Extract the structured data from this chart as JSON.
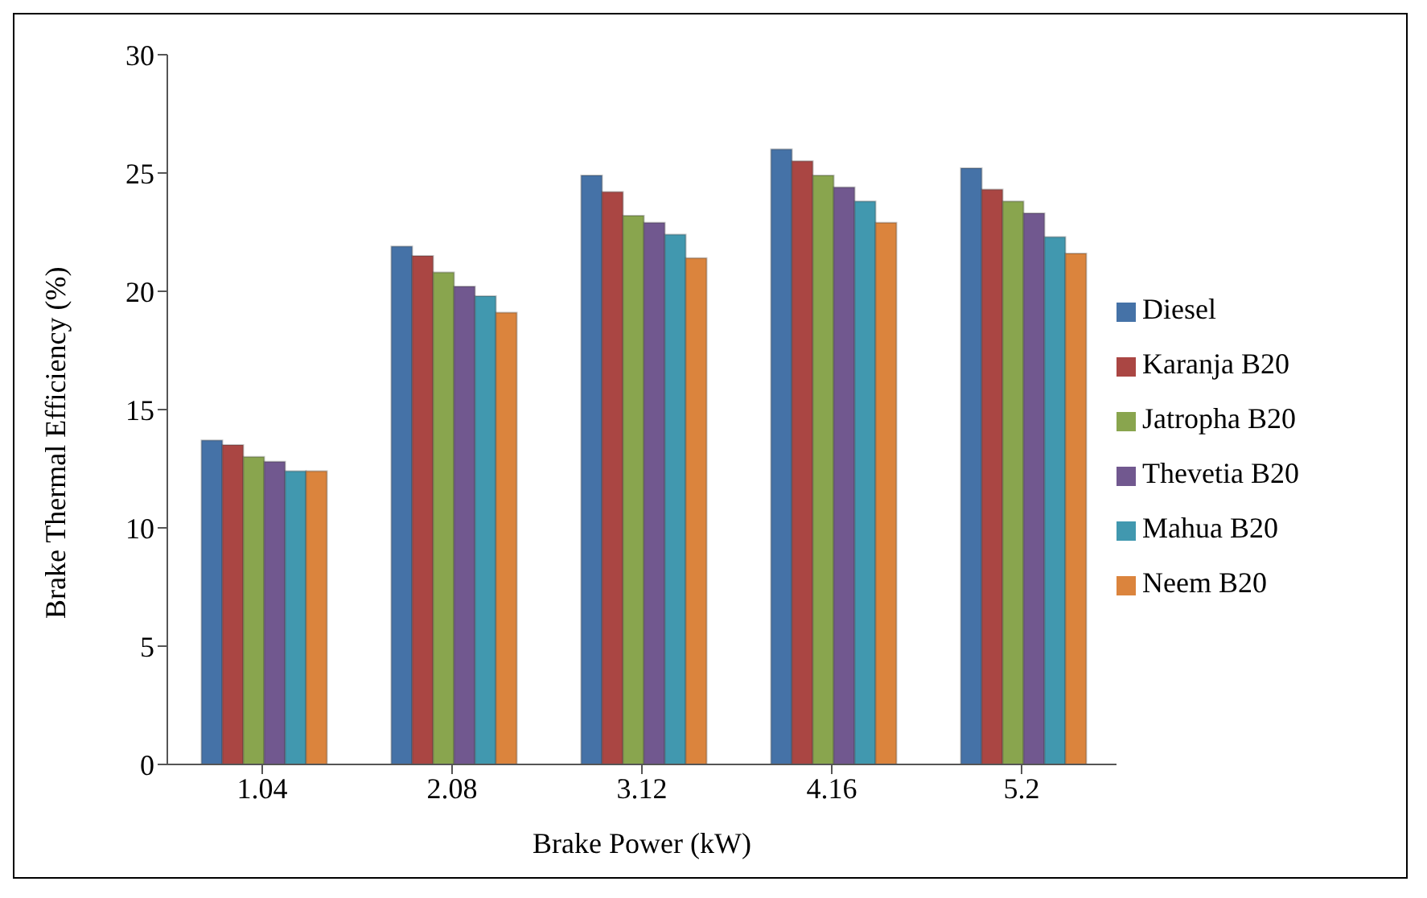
{
  "chart_data": {
    "type": "bar",
    "xlabel": "Brake Power (kW)",
    "ylabel": "Brake Thermal Efficiency (%)",
    "categories": [
      "1.04",
      "2.08",
      "3.12",
      "4.16",
      "5.2"
    ],
    "series": [
      {
        "name": "Diesel",
        "color": "#4572a7",
        "values": [
          13.7,
          21.9,
          24.9,
          26.0,
          25.2
        ]
      },
      {
        "name": "Karanja B20",
        "color": "#aa4643",
        "values": [
          13.5,
          21.5,
          24.2,
          25.5,
          24.3
        ]
      },
      {
        "name": "Jatropha B20",
        "color": "#89a54e",
        "values": [
          13.0,
          20.8,
          23.2,
          24.9,
          23.8
        ]
      },
      {
        "name": "Thevetia B20",
        "color": "#71588f",
        "values": [
          12.8,
          20.2,
          22.9,
          24.4,
          23.3
        ]
      },
      {
        "name": "Mahua B20",
        "color": "#4198af",
        "values": [
          12.4,
          19.8,
          22.4,
          23.8,
          22.3
        ]
      },
      {
        "name": "Neem B20",
        "color": "#db843d",
        "values": [
          12.4,
          19.1,
          21.4,
          22.9,
          21.6
        ]
      }
    ],
    "ylim": [
      0,
      30
    ],
    "yticks": [
      0,
      5,
      10,
      15,
      20,
      25,
      30
    ],
    "grid": false,
    "legend": "right"
  }
}
